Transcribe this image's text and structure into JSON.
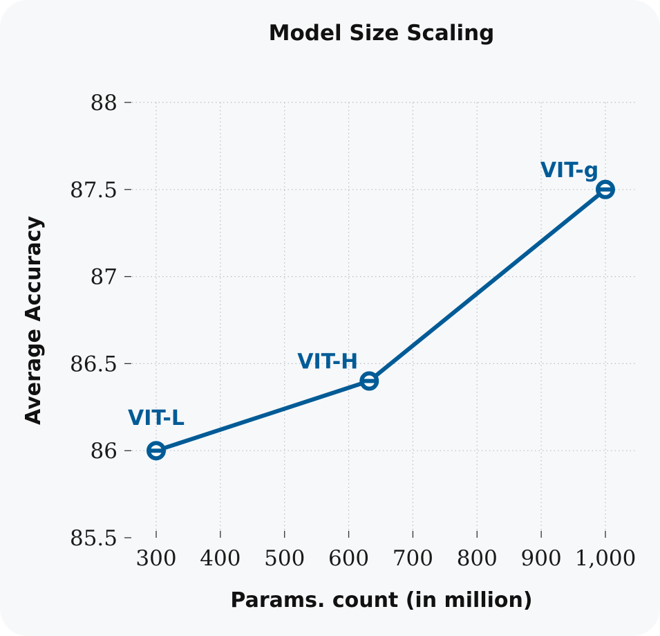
{
  "chart_data": {
    "type": "line",
    "title": "Model Size Scaling",
    "xlabel": "Params. count (in million)",
    "ylabel": "Average Accuracy",
    "xlim": [
      300,
      1000
    ],
    "ylim": [
      85.5,
      88
    ],
    "x_ticks": [
      300,
      400,
      500,
      600,
      700,
      800,
      900,
      1000
    ],
    "x_tick_labels": [
      "300",
      "400",
      "500",
      "600",
      "700",
      "800",
      "900",
      "1,000"
    ],
    "y_ticks": [
      85.5,
      86,
      86.5,
      87,
      87.5,
      88
    ],
    "y_tick_labels": [
      "85.5",
      "86",
      "86.5",
      "87",
      "87.5",
      "88"
    ],
    "grid": true,
    "series": [
      {
        "color": "#005b96",
        "points": [
          {
            "x": 300,
            "y": 86.0,
            "label": "VIT-L"
          },
          {
            "x": 632,
            "y": 86.4,
            "label": "VIT-H"
          },
          {
            "x": 1000,
            "y": 87.5,
            "label": "VIT-g"
          }
        ]
      }
    ]
  }
}
